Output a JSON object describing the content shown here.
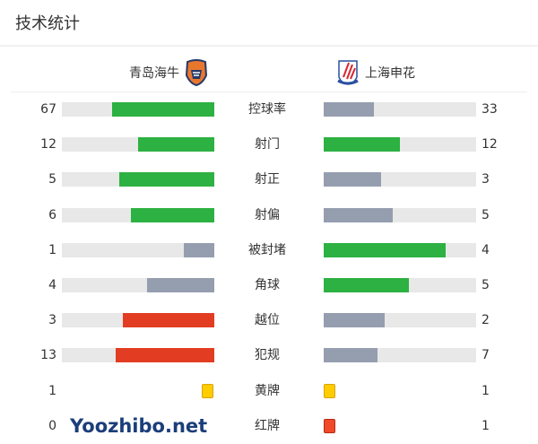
{
  "title": "技术统计",
  "home_team": {
    "name": "青岛海牛",
    "logo_icon": "qingdao-hainiu-crest"
  },
  "away_team": {
    "name": "上海申花",
    "logo_icon": "shanghai-shenhua-crest"
  },
  "colors": {
    "green": "#2db142",
    "gray": "#959eaf",
    "red": "#e23d22",
    "track": "#e8e8e8",
    "yellow_card": "#ffcc00",
    "red_card": "#f04a2a"
  },
  "stats": [
    {
      "label": "控球率",
      "home": "67",
      "away": "33",
      "home_frac": 0.67,
      "away_frac": 0.33,
      "home_color": "green",
      "away_color": "gray"
    },
    {
      "label": "射门",
      "home": "12",
      "away": "12",
      "home_frac": 0.5,
      "away_frac": 0.5,
      "home_color": "green",
      "away_color": "green"
    },
    {
      "label": "射正",
      "home": "5",
      "away": "3",
      "home_frac": 0.625,
      "away_frac": 0.375,
      "home_color": "green",
      "away_color": "gray"
    },
    {
      "label": "射偏",
      "home": "6",
      "away": "5",
      "home_frac": 0.545,
      "away_frac": 0.455,
      "home_color": "green",
      "away_color": "gray"
    },
    {
      "label": "被封堵",
      "home": "1",
      "away": "4",
      "home_frac": 0.2,
      "away_frac": 0.8,
      "home_color": "gray",
      "away_color": "green"
    },
    {
      "label": "角球",
      "home": "4",
      "away": "5",
      "home_frac": 0.444,
      "away_frac": 0.556,
      "home_color": "gray",
      "away_color": "green"
    },
    {
      "label": "越位",
      "home": "3",
      "away": "2",
      "home_frac": 0.6,
      "away_frac": 0.4,
      "home_color": "red",
      "away_color": "gray"
    },
    {
      "label": "犯规",
      "home": "13",
      "away": "7",
      "home_frac": 0.65,
      "away_frac": 0.35,
      "home_color": "red",
      "away_color": "gray"
    }
  ],
  "cards": [
    {
      "label": "黄牌",
      "home": "1",
      "away": "1",
      "color": "yellow_card",
      "home_show": true
    },
    {
      "label": "红牌",
      "home": "0",
      "away": "1",
      "color": "red_card",
      "home_show": false
    }
  ],
  "watermark": "Yoozhibo.net"
}
